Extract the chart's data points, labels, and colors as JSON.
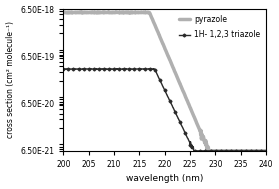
{
  "title": "",
  "xlabel": "wavelength (nm)",
  "ylabel": "cross section (cm² molecule⁻¹)",
  "xlim": [
    200,
    240
  ],
  "ylim_log": [
    6.5e-21,
    6.5e-18
  ],
  "yticks": [
    6.5e-21,
    6.5e-20,
    6.5e-19,
    6.5e-18
  ],
  "ytick_labels": [
    "6.50E-21",
    "6.50E-20",
    "6.50E-19",
    "6.50E-18"
  ],
  "xticks": [
    200,
    205,
    210,
    215,
    220,
    225,
    230,
    235,
    240
  ],
  "legend_pyrazole": "pyrazole",
  "legend_triazole": "1H- 1,2,3 triazole",
  "color_pyrazole": "#b0b0b0",
  "color_triazole": "#2a2a2a",
  "background": "#ffffff"
}
